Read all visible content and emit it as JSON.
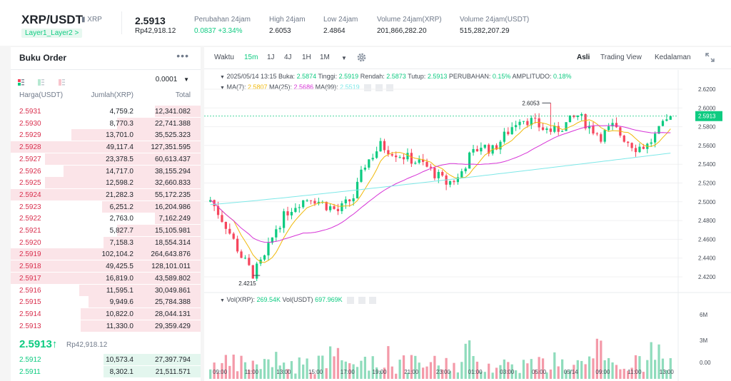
{
  "header": {
    "pair": "XRP/USDT",
    "coin": "XRP",
    "tag": "Layer1_Layer2 >",
    "last_price": "2.5913",
    "last_price_idr": "Rp42,918.12",
    "stats": [
      {
        "label": "Perubahan 24jam",
        "value": "0.0837 +3.34%"
      },
      {
        "label": "High 24jam",
        "value": "2.6053"
      },
      {
        "label": "Low 24jam",
        "value": "2.4864"
      },
      {
        "label": "Volume 24jam(XRP)",
        "value": "201,866,282.20"
      },
      {
        "label": "Volume 24jam(USDT)",
        "value": "515,282,207.29"
      }
    ]
  },
  "orderbook": {
    "title": "Buku Order",
    "menu": "•••",
    "precision": "0.0001",
    "col_price": "Harga(USDT)",
    "col_amount": "Jumlah(XRP)",
    "col_total": "Total",
    "asks": [
      {
        "price": "2.5931",
        "amount": "4,759.2",
        "total": "12,341.082",
        "depth": 0.24
      },
      {
        "price": "2.5930",
        "amount": "8,770.3",
        "total": "22,741.388",
        "depth": 0.44
      },
      {
        "price": "2.5929",
        "amount": "13,701.0",
        "total": "35,525.323",
        "depth": 0.68
      },
      {
        "price": "2.5928",
        "amount": "49,117.4",
        "total": "127,351.595",
        "depth": 1.0
      },
      {
        "price": "2.5927",
        "amount": "23,378.5",
        "total": "60,613.437",
        "depth": 0.82
      },
      {
        "price": "2.5926",
        "amount": "14,717.0",
        "total": "38,155.294",
        "depth": 0.72
      },
      {
        "price": "2.5925",
        "amount": "12,598.2",
        "total": "32,660.833",
        "depth": 0.82
      },
      {
        "price": "2.5924",
        "amount": "21,282.3",
        "total": "55,172.235",
        "depth": 1.0
      },
      {
        "price": "2.5923",
        "amount": "6,251.2",
        "total": "16,204.986",
        "depth": 0.52
      },
      {
        "price": "2.5922",
        "amount": "2,763.0",
        "total": "7,162.249",
        "depth": 0.24
      },
      {
        "price": "2.5921",
        "amount": "5,827.7",
        "total": "15,105.981",
        "depth": 0.44
      },
      {
        "price": "2.5920",
        "amount": "7,158.3",
        "total": "18,554.314",
        "depth": 0.51
      },
      {
        "price": "2.5919",
        "amount": "102,104.2",
        "total": "264,643.876",
        "depth": 1.0
      },
      {
        "price": "2.5918",
        "amount": "49,425.5",
        "total": "128,101.011",
        "depth": 1.0
      },
      {
        "price": "2.5917",
        "amount": "16,819.0",
        "total": "43,589.802",
        "depth": 1.0
      },
      {
        "price": "2.5916",
        "amount": "11,595.1",
        "total": "30,049.861",
        "depth": 0.64
      },
      {
        "price": "2.5915",
        "amount": "9,949.6",
        "total": "25,784.388",
        "depth": 0.59
      },
      {
        "price": "2.5914",
        "amount": "10,822.0",
        "total": "28,044.131",
        "depth": 0.63
      },
      {
        "price": "2.5913",
        "amount": "11,330.0",
        "total": "29,359.429",
        "depth": 0.63
      }
    ],
    "mid_price": "2.5913↑",
    "mid_price_idr": "Rp42,918.12",
    "bids": [
      {
        "price": "2.5912",
        "amount": "10,573.4",
        "total": "27,397.794",
        "depth": 0.51
      },
      {
        "price": "2.5911",
        "amount": "8,302.1",
        "total": "21,511.571",
        "depth": 0.51
      }
    ]
  },
  "chart": {
    "toolbar_left": [
      "Waktu",
      "15m",
      "1J",
      "4J",
      "1H",
      "1M"
    ],
    "active_interval": "15m",
    "toolbar_right": [
      "Asli",
      "Trading View",
      "Kedalaman"
    ],
    "active_view": "Asli",
    "ohlc_line": {
      "date": "2025/05/14 13:15",
      "open_label": "Buka:",
      "open": "2.5874",
      "high_label": "Tinggi:",
      "high": "2.5919",
      "low_label": "Rendah:",
      "low": "2.5873",
      "close_label": "Tutup:",
      "close": "2.5913",
      "change_label": "PERUBAHAN:",
      "change": "0.15%",
      "amp_label": "AMPLITUDO:",
      "amp": "0.18%"
    },
    "ma_line": {
      "ma7_label": "MA(7):",
      "ma7": "2.5807",
      "ma25_label": "MA(25):",
      "ma25": "2.5686",
      "ma99_label": "MA(99):",
      "ma99": "2.5519"
    },
    "vol_line": {
      "vol_xrp_label": "Vol(XRP):",
      "vol_xrp": "269.54K",
      "vol_usdt_label": "Vol(USDT)",
      "vol_usdt": "697.969K"
    },
    "colors": {
      "up": "#0ecb81",
      "down": "#f6465d",
      "ma7": "#f0b90b",
      "ma25": "#d633d6",
      "ma99": "#7ee8e8"
    },
    "price_ticks": [
      "2.6200",
      "2.6000",
      "2.5800",
      "2.5600",
      "2.5400",
      "2.5200",
      "2.5000",
      "2.4800",
      "2.4600",
      "2.4400",
      "2.4200"
    ],
    "volume_ticks": [
      "6M",
      "3M",
      "0.00"
    ],
    "time_ticks": [
      "09:00",
      "11:00",
      "13:00",
      "15:00",
      "17:00",
      "19:00",
      "21:00",
      "23:00",
      "01:00",
      "03:00",
      "05:00",
      "05/14",
      "09:00",
      "11:00",
      "13:00"
    ],
    "last_price_badge": "2.5913",
    "high_marker": "2.6053",
    "low_marker": "2.4215"
  }
}
